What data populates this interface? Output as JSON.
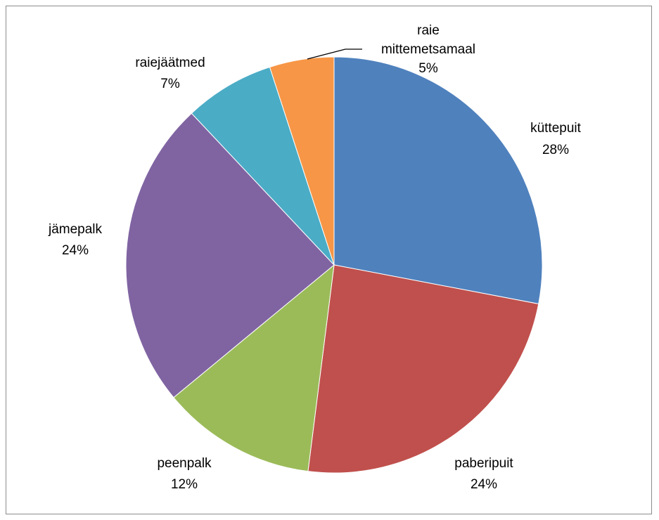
{
  "chart_data": {
    "type": "pie",
    "title": "",
    "slices": [
      {
        "name": "küttepuit",
        "value": 28,
        "label_lines": [
          "küttepuit",
          "28%"
        ],
        "color": "#4F81BD"
      },
      {
        "name": "paberipuit",
        "value": 24,
        "label_lines": [
          "paberipuit",
          "24%"
        ],
        "color": "#C0504D"
      },
      {
        "name": "peenpalk",
        "value": 12,
        "label_lines": [
          "peenpalk",
          "12%"
        ],
        "color": "#9BBB59"
      },
      {
        "name": "jämepalk",
        "value": 24,
        "label_lines": [
          "jämepalk",
          "24%"
        ],
        "color": "#8064A2"
      },
      {
        "name": "raiejäätmed",
        "value": 7,
        "label_lines": [
          "raiejäätmed",
          "7%"
        ],
        "color": "#4BACC6"
      },
      {
        "name": "raie mittemetsamaal",
        "value": 5,
        "label_lines": [
          "raie",
          "mittemetsamaal",
          "5%"
        ],
        "color": "#F79646"
      }
    ],
    "legend": "none",
    "start_angle": "top, clockwise"
  }
}
